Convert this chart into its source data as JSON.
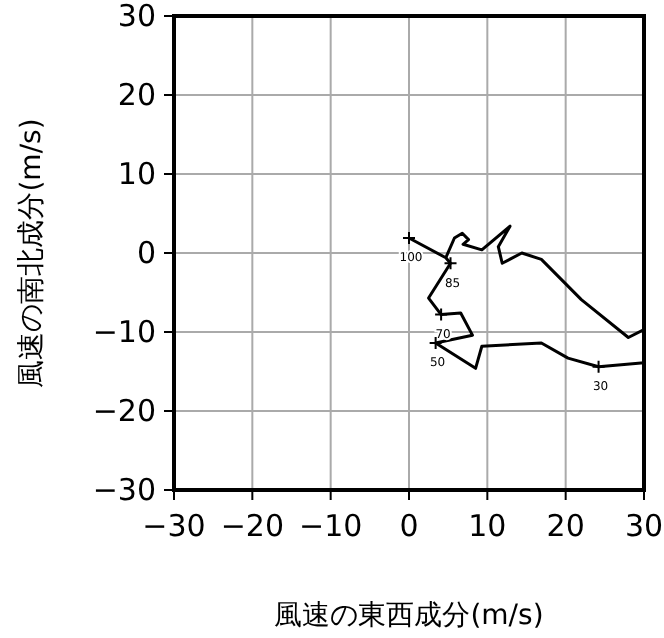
{
  "chart_data": {
    "type": "line",
    "xlabel": "風速の東西成分(m/s)",
    "ylabel": "風速の南北成分(m/s)",
    "xlim": [
      -30,
      30
    ],
    "ylim": [
      -30,
      30
    ],
    "xticks": [
      -30,
      -20,
      -10,
      0,
      10,
      20,
      30
    ],
    "yticks": [
      -30,
      -20,
      -10,
      0,
      10,
      20,
      30
    ],
    "grid": true,
    "line_style": "solid",
    "marker": "none",
    "series": [
      {
        "color": "#000000",
        "x": [
          0,
          4.7,
          5.3,
          2.5,
          4.1,
          6.6,
          8.1,
          3.4,
          8.5,
          9.3,
          16.9,
          20.3,
          24.2,
          30
        ],
        "values": [
          1.9,
          -0.6,
          -1.3,
          -5.7,
          -7.8,
          -7.6,
          -10.4,
          -11.4,
          -14.6,
          -11.8,
          -11.4,
          -13.3,
          -14.4,
          -13.9
        ]
      },
      {
        "color": "#000000",
        "x": [
          4.7,
          5.8,
          6.8,
          7.6,
          6.9,
          9.3,
          12.9,
          11.4,
          11.9,
          14.4,
          16.9,
          22,
          28,
          30
        ],
        "values": [
          -0.6,
          1.9,
          2.5,
          1.7,
          1.1,
          0.4,
          3.4,
          0.8,
          -1.3,
          0,
          -0.8,
          -5.9,
          -10.7,
          -9.7
        ]
      }
    ],
    "annotations": [
      {
        "text": "100",
        "x": 0,
        "y": 1.9
      },
      {
        "text": "85",
        "x": 5.3,
        "y": -1.3
      },
      {
        "text": "70",
        "x": 4.1,
        "y": -7.8
      },
      {
        "text": "50",
        "x": 3.4,
        "y": -11.4
      },
      {
        "text": "30",
        "x": 24.2,
        "y": -14.4
      }
    ]
  }
}
